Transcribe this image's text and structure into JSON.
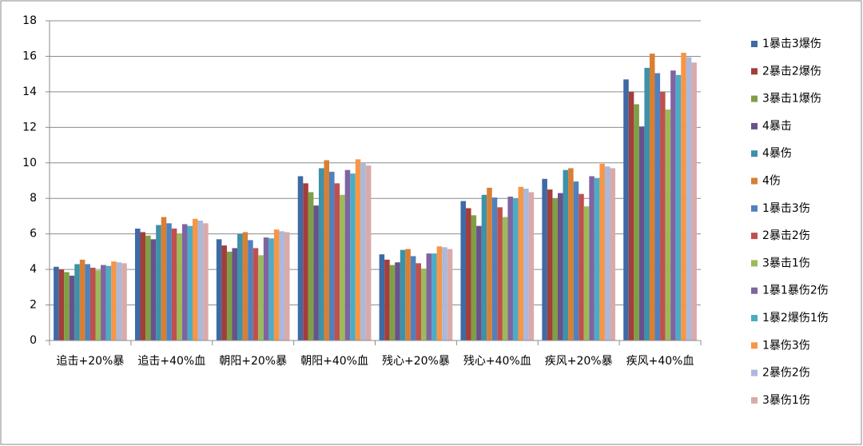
{
  "chart_data": {
    "type": "bar",
    "categories": [
      "追击+20%暴",
      "追击+40%血",
      "朝阳+20%暴",
      "朝阳+40%血",
      "残心+20%暴",
      "残心+40%血",
      "疾风+20%暴",
      "疾风+40%血"
    ],
    "series": [
      {
        "name": "1暴击3爆伤",
        "color": "#3e6aa5",
        "values": [
          4.15,
          6.3,
          5.7,
          9.25,
          4.85,
          7.85,
          9.1,
          14.7
        ]
      },
      {
        "name": "2暴击2爆伤",
        "color": "#a33e3b",
        "values": [
          4.0,
          6.1,
          5.35,
          8.85,
          4.55,
          7.45,
          8.5,
          14.0
        ]
      },
      {
        "name": "3暴击1爆伤",
        "color": "#7f9f45",
        "values": [
          3.85,
          5.9,
          5.0,
          8.35,
          4.25,
          7.05,
          8.0,
          13.3
        ]
      },
      {
        "name": "4暴击",
        "color": "#69518b",
        "values": [
          3.65,
          5.7,
          5.2,
          7.6,
          4.4,
          6.45,
          8.3,
          12.05
        ]
      },
      {
        "name": "4暴伤",
        "color": "#3b92a9",
        "values": [
          4.3,
          6.5,
          6.0,
          9.7,
          5.1,
          8.2,
          9.6,
          15.35
        ]
      },
      {
        "name": "4伤",
        "color": "#d97f34",
        "values": [
          4.55,
          6.95,
          6.1,
          10.15,
          5.15,
          8.6,
          9.7,
          16.15
        ]
      },
      {
        "name": "1暴击3伤",
        "color": "#4f81bd",
        "values": [
          4.3,
          6.6,
          5.65,
          9.5,
          4.75,
          8.05,
          8.95,
          15.05
        ]
      },
      {
        "name": "2暴击2伤",
        "color": "#c0504d",
        "values": [
          4.1,
          6.3,
          5.2,
          8.85,
          4.35,
          7.5,
          8.25,
          14.0
        ]
      },
      {
        "name": "3暴击1伤",
        "color": "#9bbb59",
        "values": [
          3.95,
          6.0,
          4.8,
          8.2,
          4.05,
          6.95,
          7.55,
          13.0
        ]
      },
      {
        "name": "1暴1暴伤2伤",
        "color": "#8064a2",
        "values": [
          4.25,
          6.55,
          5.8,
          9.6,
          4.9,
          8.1,
          9.25,
          15.2
        ]
      },
      {
        "name": "1暴2爆伤1伤",
        "color": "#4bacc6",
        "values": [
          4.2,
          6.45,
          5.75,
          9.4,
          4.9,
          8.0,
          9.15,
          14.95
        ]
      },
      {
        "name": "1暴伤3伤",
        "color": "#f79646",
        "values": [
          4.45,
          6.85,
          6.25,
          10.2,
          5.3,
          8.65,
          9.95,
          16.2
        ]
      },
      {
        "name": "2暴伤2伤",
        "color": "#aab9dc",
        "values": [
          4.4,
          6.75,
          6.15,
          10.0,
          5.25,
          8.55,
          9.8,
          15.95
        ]
      },
      {
        "name": "3暴伤1伤",
        "color": "#d9aaa9",
        "values": [
          4.35,
          6.6,
          6.1,
          9.85,
          5.15,
          8.35,
          9.7,
          15.65
        ]
      }
    ],
    "ylim": [
      0,
      18
    ],
    "yticks": [
      0,
      2,
      4,
      6,
      8,
      10,
      12,
      14,
      16,
      18
    ],
    "grid": true,
    "legend": "right"
  }
}
